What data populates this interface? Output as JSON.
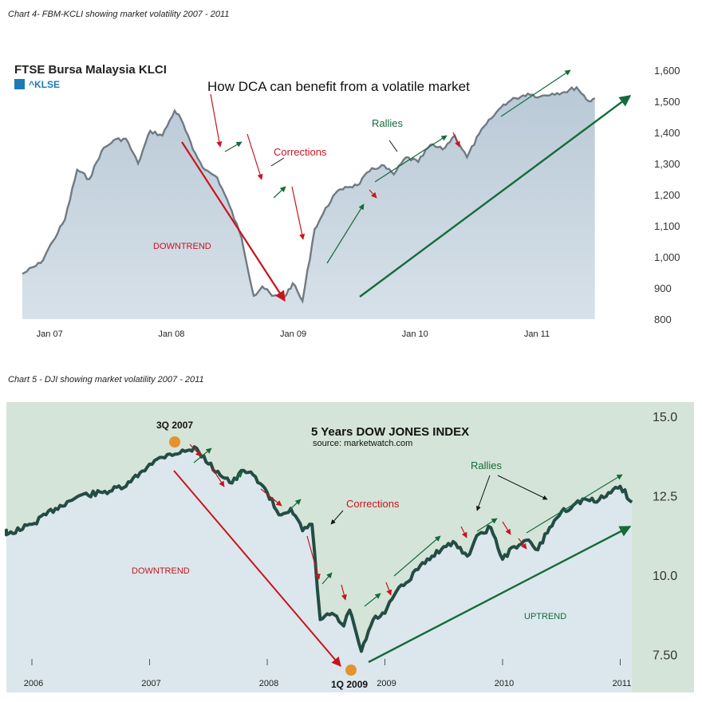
{
  "chart_data": [
    {
      "type": "area",
      "caption": "Chart 4- FBM-KCLI showing market volatility 2007 - 2011",
      "title": "FTSE Bursa Malaysia KLCI",
      "legend": "^KLSE",
      "subtitle": "How DCA can benefit from a volatile market",
      "x_ticks": [
        "Jan 07",
        "Jan 08",
        "Jan 09",
        "Jan 10",
        "Jan 11"
      ],
      "y_ticks": [
        "1,600",
        "1,500",
        "1,400",
        "1,300",
        "1,200",
        "1,100",
        "1,000",
        "900",
        "800"
      ],
      "ylim": [
        800,
        1600
      ],
      "x": [
        2006.75,
        2006.9,
        2007.0,
        2007.1,
        2007.2,
        2007.3,
        2007.4,
        2007.5,
        2007.6,
        2007.7,
        2007.8,
        2007.9,
        2008.0,
        2008.05,
        2008.15,
        2008.25,
        2008.35,
        2008.45,
        2008.55,
        2008.65,
        2008.72,
        2008.8,
        2008.9,
        2008.97,
        2009.05,
        2009.15,
        2009.2,
        2009.3,
        2009.4,
        2009.5,
        2009.6,
        2009.7,
        2009.8,
        2009.9,
        2010.0,
        2010.1,
        2010.2,
        2010.3,
        2010.4,
        2010.5,
        2010.6,
        2010.7,
        2010.8,
        2010.9,
        2011.0,
        2011.1,
        2011.2,
        2011.3,
        2011.4,
        2011.45
      ],
      "values": [
        945,
        980,
        1050,
        1120,
        1280,
        1250,
        1340,
        1375,
        1380,
        1300,
        1405,
        1390,
        1470,
        1445,
        1345,
        1280,
        1255,
        1165,
        1060,
        875,
        905,
        875,
        870,
        915,
        858,
        1090,
        1125,
        1195,
        1225,
        1230,
        1275,
        1295,
        1265,
        1320,
        1305,
        1360,
        1345,
        1390,
        1320,
        1395,
        1445,
        1490,
        1510,
        1525,
        1515,
        1525,
        1530,
        1545,
        1500,
        1510
      ],
      "annotations": [
        "DOWNTREND",
        "Corrections",
        "Rallies"
      ]
    },
    {
      "type": "area",
      "caption": "Chart 5 - DJI showing market volatility 2007 - 2011",
      "title": "5 Years DOW JONES INDEX",
      "subtitle": "source: marketwatch.com",
      "x_ticks": [
        "2006",
        "2007",
        "2008",
        "2009",
        "2010",
        "2011"
      ],
      "y_ticks": [
        "15.0",
        "12.5",
        "10.0",
        "7.50"
      ],
      "ylim": [
        7.5,
        15.0
      ],
      "x": [
        2005.6,
        2005.8,
        2006.0,
        2006.2,
        2006.4,
        2006.6,
        2006.8,
        2007.0,
        2007.15,
        2007.3,
        2007.4,
        2007.5,
        2007.7,
        2007.8,
        2007.9,
        2008.0,
        2008.1,
        2008.2,
        2008.3,
        2008.38,
        2008.45,
        2008.55,
        2008.65,
        2008.7,
        2008.8,
        2008.9,
        2009.0,
        2009.1,
        2009.2,
        2009.3,
        2009.4,
        2009.5,
        2009.6,
        2009.7,
        2009.8,
        2009.9,
        2010.0,
        2010.1,
        2010.2,
        2010.3,
        2010.4,
        2010.5,
        2010.6,
        2010.7,
        2010.8,
        2010.9,
        2011.0,
        2011.1
      ],
      "values": [
        11.4,
        11.3,
        11.6,
        12.1,
        12.5,
        12.6,
        12.8,
        13.5,
        13.8,
        13.9,
        14.0,
        13.5,
        12.9,
        13.3,
        13.1,
        12.6,
        11.9,
        12.1,
        11.4,
        11.6,
        8.6,
        8.8,
        8.4,
        8.9,
        7.6,
        8.6,
        8.8,
        9.5,
        9.8,
        10.3,
        10.6,
        10.9,
        11.0,
        10.6,
        11.3,
        11.5,
        10.5,
        10.9,
        11.1,
        10.8,
        11.5,
        12.0,
        12.2,
        12.4,
        12.3,
        12.6,
        12.8,
        12.3
      ],
      "markers": [
        "3Q 2007",
        "1Q 2009"
      ],
      "annotations": [
        "DOWNTREND",
        "Corrections",
        "Rallies",
        "UPTREND"
      ]
    }
  ]
}
